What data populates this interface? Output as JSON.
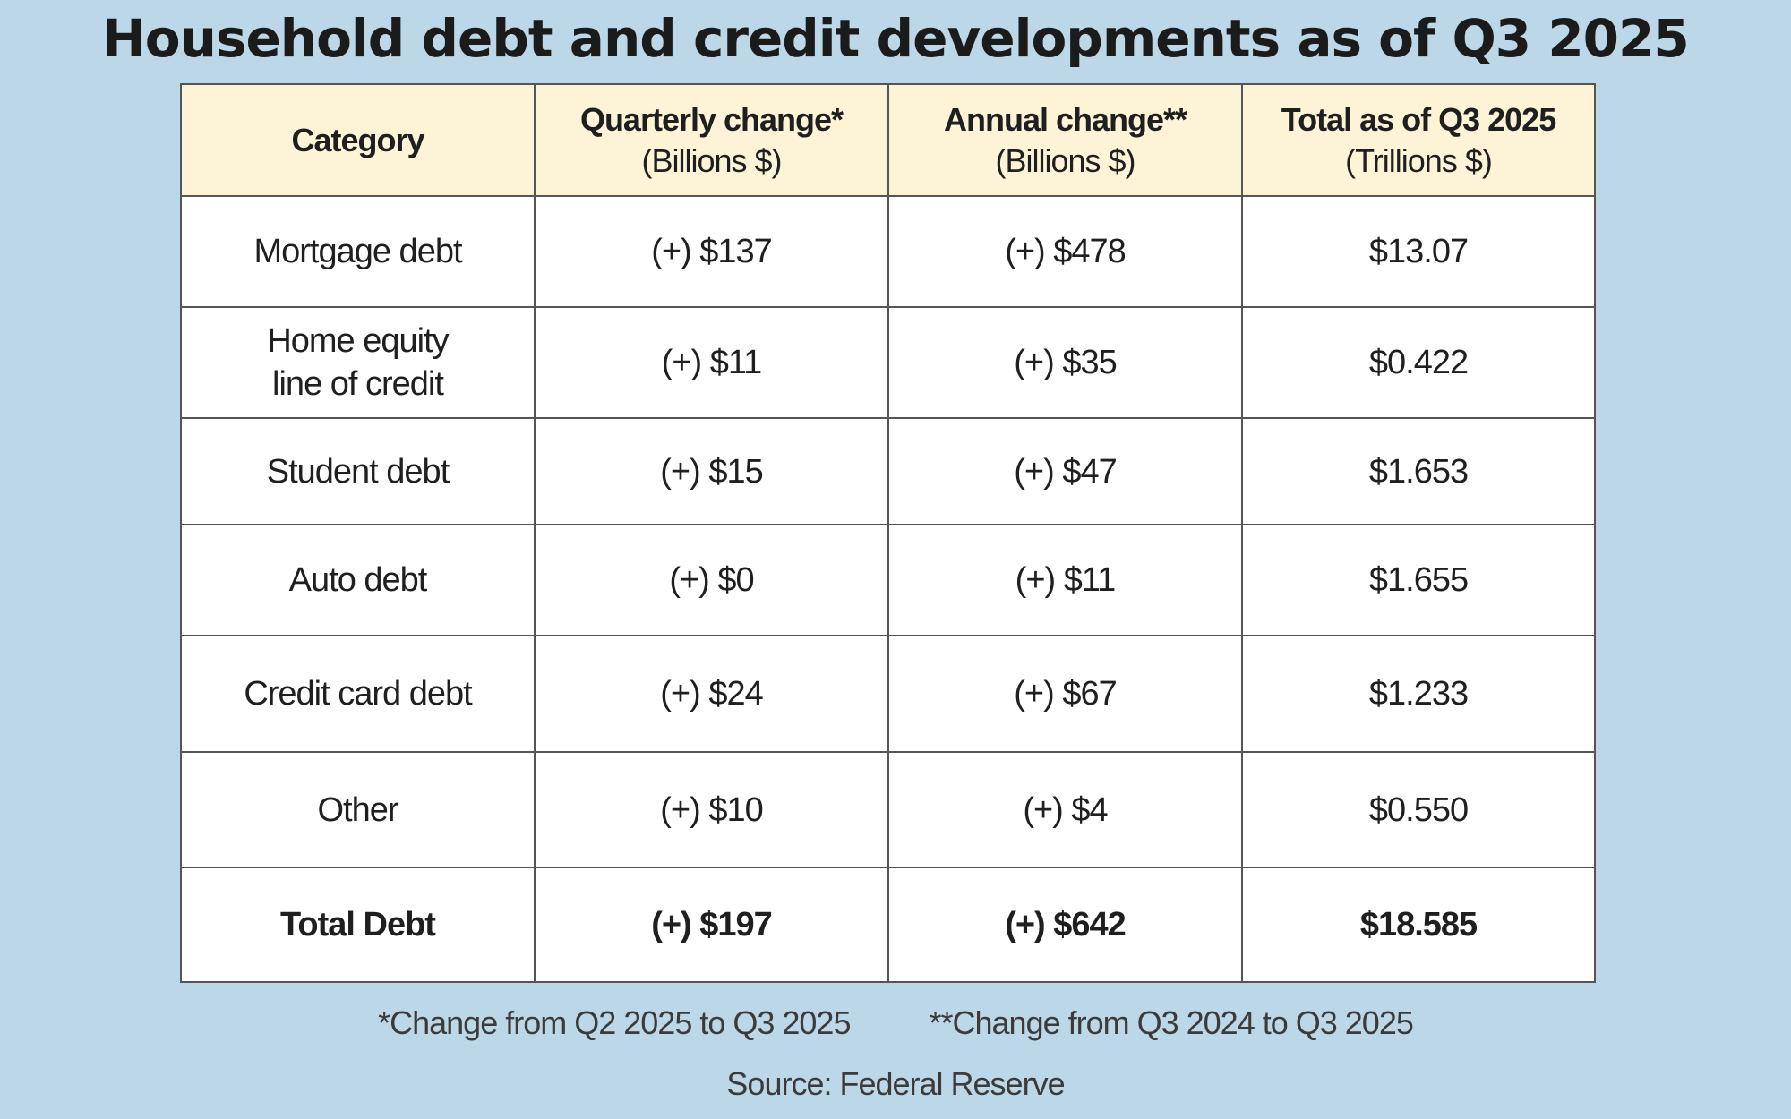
{
  "chart_data": {
    "type": "table",
    "title": "Household debt and credit developments as of Q3 2025",
    "columns": [
      {
        "label": "Category",
        "unit": ""
      },
      {
        "label": "Quarterly change*",
        "unit": "(Billions $)"
      },
      {
        "label": "Annual change**",
        "unit": "(Billions $)"
      },
      {
        "label": "Total as of Q3 2025",
        "unit": "(Trillions $)"
      }
    ],
    "rows": [
      {
        "category": [
          "Mortgage debt"
        ],
        "quarterly": "(+) $137",
        "annual": "(+) $478",
        "total": "$13.07"
      },
      {
        "category": [
          "Home equity",
          "line of credit"
        ],
        "quarterly": "(+) $11",
        "annual": "(+) $35",
        "total": "$0.422"
      },
      {
        "category": [
          "Student debt"
        ],
        "quarterly": "(+) $15",
        "annual": "(+) $47",
        "total": "$1.653"
      },
      {
        "category": [
          "Auto debt"
        ],
        "quarterly": "(+) $0",
        "annual": "(+) $11",
        "total": "$1.655"
      },
      {
        "category": [
          "Credit card debt"
        ],
        "quarterly": "(+) $24",
        "annual": "(+) $67",
        "total": "$1.233"
      },
      {
        "category": [
          "Other"
        ],
        "quarterly": "(+) $10",
        "annual": "(+) $4",
        "total": "$0.550"
      }
    ],
    "total_row": {
      "category": "Total Debt",
      "quarterly": "(+) $197",
      "annual": "(+) $642",
      "total": "$18.585"
    },
    "footnotes": [
      "*Change from Q2 2025 to Q3 2025",
      "**Change from Q3 2024 to Q3 2025"
    ],
    "source": "Source: Federal Reserve"
  },
  "colors": {
    "background": "#bcd7e8",
    "header_fill": "#fdf3d6",
    "cell_fill": "#ffffff",
    "border": "#555555"
  }
}
